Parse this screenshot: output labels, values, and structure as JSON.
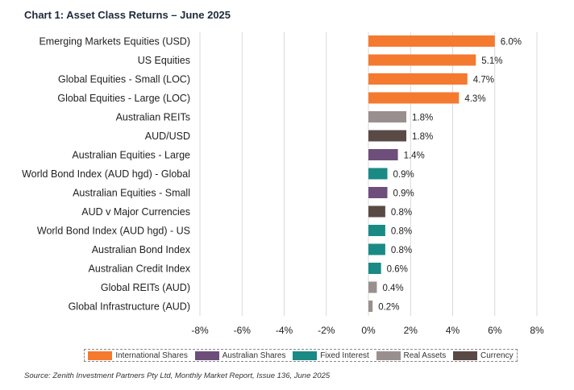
{
  "title": "Chart 1: Asset Class Returns – June 2025",
  "source": "Source: Zenith Investment Partners Pty Ltd, Monthly Market Report, Issue 136, June 2025",
  "colors": {
    "International Shares": "#f47a30",
    "Australian Shares": "#6e4e7a",
    "Fixed Interest": "#1a8a85",
    "Real Assets": "#9a8f8f",
    "Currency": "#5a4a45",
    "gridline": "#d9d9d9"
  },
  "legend": [
    {
      "label": "International Shares",
      "group": "International Shares"
    },
    {
      "label": "Australian Shares",
      "group": "Australian Shares"
    },
    {
      "label": "Fixed Interest",
      "group": "Fixed Interest"
    },
    {
      "label": "Real Assets",
      "group": "Real Assets"
    },
    {
      "label": "Currency",
      "group": "Currency"
    }
  ],
  "chart_data": {
    "type": "bar",
    "orientation": "horizontal",
    "categories": [
      "Emerging Markets Equities (USD)",
      "US Equities",
      "Global Equities - Small (LOC)",
      "Global Equities - Large (LOC)",
      "Australian REITs",
      "AUD/USD",
      "Australian Equities - Large",
      "World Bond Index (AUD hgd) - Global",
      "Australian Equities - Small",
      "AUD v Major Currencies",
      "World Bond Index (AUD hgd) - US",
      "Australian Bond Index",
      "Australian Credit Index",
      "Global REITs (AUD)",
      "Global Infrastructure (AUD)"
    ],
    "values": [
      6.0,
      5.1,
      4.7,
      4.3,
      1.8,
      1.8,
      1.4,
      0.9,
      0.9,
      0.8,
      0.8,
      0.8,
      0.6,
      0.4,
      0.2
    ],
    "value_labels": [
      "6.0%",
      "5.1%",
      "4.7%",
      "4.3%",
      "1.8%",
      "1.8%",
      "1.4%",
      "0.9%",
      "0.9%",
      "0.8%",
      "0.8%",
      "0.8%",
      "0.6%",
      "0.4%",
      "0.2%"
    ],
    "groups": [
      "International Shares",
      "International Shares",
      "International Shares",
      "International Shares",
      "Real Assets",
      "Currency",
      "Australian Shares",
      "Fixed Interest",
      "Australian Shares",
      "Currency",
      "Fixed Interest",
      "Fixed Interest",
      "Fixed Interest",
      "Real Assets",
      "Real Assets"
    ],
    "xlim": [
      -8,
      8
    ],
    "xticks": [
      -8,
      -6,
      -4,
      -2,
      0,
      2,
      4,
      6,
      8
    ],
    "xtick_labels": [
      "-8%",
      "-6%",
      "-4%",
      "-2%",
      "0%",
      "2%",
      "4%",
      "6%",
      "8%"
    ],
    "grid": "vertical",
    "legend_position": "bottom"
  }
}
